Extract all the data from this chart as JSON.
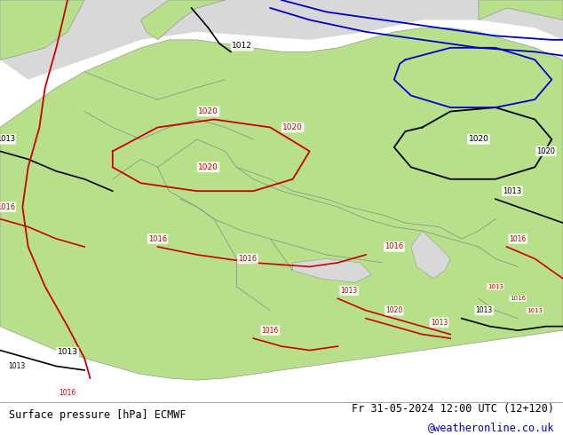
{
  "bottom_left_text": "Surface pressure [hPa] ECMWF",
  "bottom_right_text": "Fr 31-05-2024 12:00 UTC (12+120)",
  "bottom_link_text": "@weatheronline.co.uk",
  "bottom_link_color": "#0000cc",
  "bg_color": "#ffffff",
  "land_color": "#b8e08a",
  "sea_color": "#d8d8d8",
  "border_color": "#888888",
  "isobar_black": "#000000",
  "isobar_red": "#cc0000",
  "isobar_blue": "#0000cc"
}
